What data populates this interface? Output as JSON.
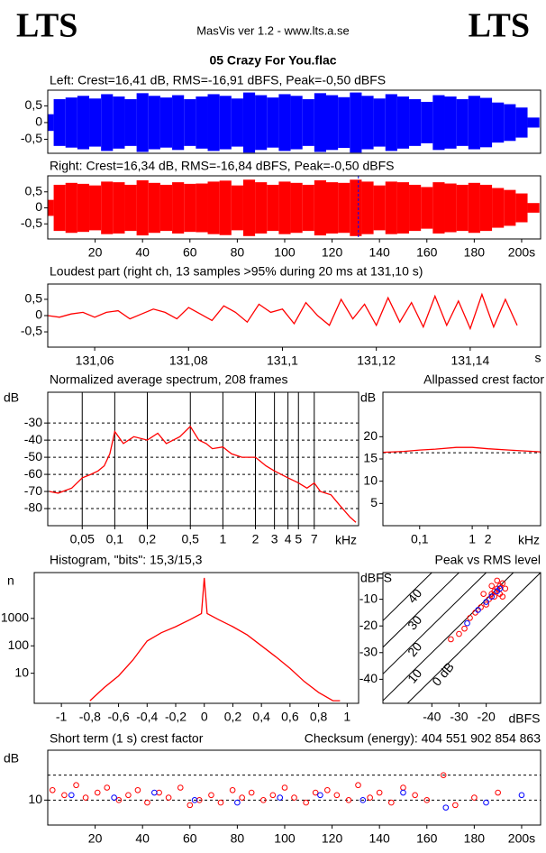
{
  "header": {
    "logo_left": "LTS",
    "logo_right": "LTS",
    "app": "MasVis ver 1.2 - www.lts.a.se",
    "file": "05 Crazy For You.flac"
  },
  "chart_data": [
    {
      "type": "waveform",
      "title": "Left: Crest=16,41 dB, RMS=-16,91 dBFS, Peak=-0,50 dBFS",
      "xlim": [
        0,
        208
      ],
      "ylim": [
        -0.92,
        0.97
      ],
      "yticks": [
        {
          "value": 0.5,
          "label": "0,5"
        },
        0,
        {
          "value": -0.5,
          "label": "-0,5"
        }
      ],
      "x": [
        0,
        5,
        10,
        15,
        20,
        25,
        30,
        35,
        40,
        45,
        50,
        55,
        60,
        65,
        70,
        75,
        80,
        85,
        90,
        95,
        100,
        105,
        110,
        115,
        120,
        125,
        130,
        135,
        140,
        145,
        150,
        155,
        160,
        165,
        170,
        175,
        180,
        185,
        190,
        195,
        200,
        205
      ],
      "series": [
        {
          "color": "#0000ff",
          "values": [
            0.25,
            0.7,
            0.75,
            0.8,
            0.72,
            0.85,
            0.78,
            0.7,
            0.88,
            0.8,
            0.75,
            0.82,
            0.7,
            0.78,
            0.85,
            0.8,
            0.72,
            0.9,
            0.82,
            0.75,
            0.85,
            0.8,
            0.7,
            0.88,
            0.82,
            0.76,
            0.9,
            0.8,
            0.72,
            0.85,
            0.78,
            0.7,
            0.62,
            0.82,
            0.78,
            0.7,
            0.8,
            0.74,
            0.6,
            0.55,
            0.45,
            0.15
          ]
        }
      ]
    },
    {
      "type": "waveform",
      "title": "Right: Crest=16,34 dB, RMS=-16,84 dBFS, Peak=-0,50 dBFS",
      "xlim": [
        0,
        208
      ],
      "ylim": [
        -0.97,
        1.0
      ],
      "yticks": [
        {
          "value": 0.5,
          "label": "0,5"
        },
        0,
        {
          "value": -0.5,
          "label": "-0,5"
        }
      ],
      "xticks": [
        20,
        40,
        60,
        80,
        100,
        120,
        140,
        160,
        180,
        {
          "value": 200,
          "label": "200s"
        }
      ],
      "cursor_x": 131.1,
      "x": [
        0,
        5,
        10,
        15,
        20,
        25,
        30,
        35,
        40,
        45,
        50,
        55,
        60,
        65,
        70,
        75,
        80,
        85,
        90,
        95,
        100,
        105,
        110,
        115,
        120,
        125,
        130,
        135,
        140,
        145,
        150,
        155,
        160,
        165,
        170,
        175,
        180,
        185,
        190,
        195,
        200,
        205
      ],
      "series": [
        {
          "color": "#ff0000",
          "values": [
            0.25,
            0.72,
            0.78,
            0.75,
            0.7,
            0.82,
            0.8,
            0.72,
            0.86,
            0.78,
            0.72,
            0.8,
            0.75,
            0.76,
            0.82,
            0.85,
            0.7,
            0.88,
            0.8,
            0.72,
            0.82,
            0.78,
            0.72,
            0.86,
            0.8,
            0.78,
            0.88,
            0.82,
            0.7,
            0.82,
            0.8,
            0.72,
            0.65,
            0.8,
            0.76,
            0.72,
            0.78,
            0.72,
            0.62,
            0.56,
            0.45,
            0.15
          ]
        }
      ]
    },
    {
      "type": "line",
      "title": "Loudest part (right ch, 13 samples >95% during 20 ms at 131,10 s)",
      "x_unit": "s",
      "xlim": [
        131.05,
        131.155
      ],
      "ylim": [
        -0.97,
        0.97
      ],
      "yticks": [
        {
          "value": 0.5,
          "label": "0,5"
        },
        0,
        {
          "value": -0.5,
          "label": "-0,5"
        }
      ],
      "xticks": [
        {
          "value": 131.06,
          "label": "131,06"
        },
        {
          "value": 131.08,
          "label": "131,08"
        },
        {
          "value": 131.1,
          "label": "131,1"
        },
        {
          "value": 131.12,
          "label": "131,12"
        },
        {
          "value": 131.14,
          "label": "131,14"
        }
      ],
      "x": [
        131.05,
        131.0525,
        131.055,
        131.0575,
        131.06,
        131.0625,
        131.065,
        131.0675,
        131.07,
        131.0725,
        131.075,
        131.0775,
        131.08,
        131.0825,
        131.085,
        131.0875,
        131.09,
        131.0925,
        131.095,
        131.0975,
        131.1,
        131.1025,
        131.105,
        131.1075,
        131.11,
        131.1125,
        131.115,
        131.1175,
        131.12,
        131.1225,
        131.125,
        131.1275,
        131.13,
        131.1325,
        131.135,
        131.1375,
        131.14,
        131.1425,
        131.145,
        131.1475,
        131.15
      ],
      "series": [
        {
          "color": "#ff0000",
          "values": [
            0,
            -0.05,
            0.05,
            0.1,
            -0.05,
            0.1,
            0.15,
            -0.1,
            0.05,
            0.2,
            0.1,
            -0.1,
            0.25,
            0.05,
            -0.15,
            0.3,
            0.1,
            -0.2,
            0.35,
            0.1,
            0.2,
            -0.25,
            0.4,
            0.0,
            -0.3,
            0.5,
            -0.1,
            0.35,
            -0.3,
            0.55,
            -0.2,
            0.4,
            -0.35,
            0.6,
            -0.3,
            0.45,
            -0.4,
            0.65,
            -0.35,
            0.5,
            -0.3
          ]
        }
      ]
    },
    {
      "type": "line",
      "title": "Normalized average spectrum, 208 frames",
      "y_label": "dB",
      "x_unit": "kHz",
      "xlog": true,
      "xlim": [
        0.024,
        18
      ],
      "ylim": [
        -90,
        -12
      ],
      "xgrid": true,
      "ygrid": true,
      "yticks": [
        -30,
        -40,
        -50,
        -60,
        -70,
        -80
      ],
      "xticks": [
        {
          "value": 0.05,
          "label": "0,05"
        },
        {
          "value": 0.1,
          "label": "0,1"
        },
        {
          "value": 0.2,
          "label": "0,2"
        },
        {
          "value": 0.5,
          "label": "0,5"
        },
        1,
        2,
        3,
        4,
        5,
        7
      ],
      "x": [
        0.025,
        0.03,
        0.04,
        0.05,
        0.06,
        0.07,
        0.08,
        0.09,
        0.1,
        0.12,
        0.15,
        0.2,
        0.25,
        0.3,
        0.4,
        0.5,
        0.6,
        0.7,
        0.8,
        1,
        1.2,
        1.5,
        2,
        2.5,
        3,
        4,
        5,
        6,
        7,
        8,
        10,
        12,
        15,
        17
      ],
      "series": [
        {
          "color": "#ff0000",
          "values": [
            -70,
            -71,
            -68,
            -62,
            -60,
            -58,
            -55,
            -48,
            -35,
            -42,
            -38,
            -40,
            -36,
            -42,
            -38,
            -32,
            -40,
            -42,
            -45,
            -44,
            -48,
            -50,
            -50,
            -55,
            -58,
            -62,
            -65,
            -68,
            -65,
            -70,
            -72,
            -78,
            -85,
            -88
          ]
        }
      ]
    },
    {
      "type": "line",
      "title": "Allpassed crest factor",
      "y_label": "dB",
      "x_unit": "kHz",
      "xlog": true,
      "xlim": [
        0.02,
        20
      ],
      "ylim": [
        0,
        30
      ],
      "ref_line": 16.4,
      "yticks": [
        20,
        15,
        10,
        5
      ],
      "xticks": [
        {
          "value": 0.1,
          "label": "0,1"
        },
        1,
        2
      ],
      "x": [
        0.02,
        0.05,
        0.1,
        0.2,
        0.5,
        1,
        2,
        5,
        10,
        20
      ],
      "series": [
        {
          "color": "#ff0000",
          "values": [
            16.5,
            16.7,
            17,
            17.2,
            17.6,
            17.6,
            17.3,
            17,
            16.8,
            16.6
          ]
        }
      ]
    },
    {
      "type": "line",
      "title": "Histogram, \"bits\": 15,3/15,3",
      "y_label": "n",
      "ylog": true,
      "xlim": [
        -1.19,
        1.08
      ],
      "ylim": [
        0.8,
        47000
      ],
      "yticks": [
        10,
        100,
        1000
      ],
      "xticks": [
        -1,
        {
          "value": -0.8,
          "label": "-0,8"
        },
        {
          "value": -0.6,
          "label": "-0,6"
        },
        {
          "value": -0.4,
          "label": "-0,4"
        },
        {
          "value": -0.2,
          "label": "-0,2"
        },
        0,
        {
          "value": 0.2,
          "label": "0,2"
        },
        {
          "value": 0.4,
          "label": "0,4"
        },
        {
          "value": 0.6,
          "label": "0,6"
        },
        {
          "value": 0.8,
          "label": "0,8"
        },
        1
      ],
      "x": [
        -0.8,
        -0.7,
        -0.6,
        -0.5,
        -0.4,
        -0.3,
        -0.2,
        -0.1,
        -0.02,
        0,
        0.02,
        0.1,
        0.2,
        0.3,
        0.4,
        0.5,
        0.6,
        0.7,
        0.8,
        0.9,
        0.95
      ],
      "series": [
        {
          "color": "#ff0000",
          "values": [
            1,
            3,
            8,
            30,
            150,
            300,
            500,
            900,
            1500,
            30000,
            1500,
            900,
            500,
            250,
            100,
            40,
            15,
            5,
            2,
            1,
            1
          ]
        }
      ]
    },
    {
      "type": "scatter",
      "title": "Peak vs RMS level",
      "y_label": "dBFS",
      "x_unit": "dBFS",
      "xlim": [
        -58,
        0
      ],
      "ylim": [
        -49,
        0
      ],
      "yticks": [
        -10,
        -20,
        -30,
        -40
      ],
      "xticks": [
        -40,
        -30,
        -20
      ],
      "diagonals": [
        {
          "value": 40,
          "label": "40"
        },
        {
          "value": 30,
          "label": "30"
        },
        {
          "value": 20,
          "label": "20"
        },
        {
          "value": 10,
          "label": "10"
        },
        {
          "value": 0,
          "label": "0 dB"
        }
      ],
      "series": [
        {
          "color": "#ff0000",
          "x": [
            -18,
            -16,
            -15,
            -17,
            -14,
            -19,
            -20,
            -16,
            -13,
            -15,
            -18,
            -22,
            -24,
            -26,
            -28,
            -30,
            -33,
            -17,
            -14,
            -21
          ],
          "values": [
            -8,
            -6,
            -5,
            -9,
            -4,
            -10,
            -12,
            -3,
            -6,
            -8,
            -5,
            -13,
            -15,
            -17,
            -21,
            -23,
            -25,
            -7,
            -9,
            -8
          ]
        },
        {
          "color": "#0000ff",
          "x": [
            -16,
            -18,
            -23,
            -27,
            -15,
            -20
          ],
          "values": [
            -7,
            -9,
            -14,
            -19,
            -6,
            -11
          ]
        }
      ]
    },
    {
      "type": "scatter",
      "title": "Short term (1 s) crest factor",
      "y_label": "dB",
      "annotation": "Checksum (energy):  404 551 902 854 863",
      "xlim": [
        0,
        208
      ],
      "ylim": [
        0,
        30
      ],
      "ygrid": true,
      "ref_line": 20,
      "yticks": [
        10
      ],
      "xticks": [
        20,
        40,
        60,
        80,
        100,
        120,
        140,
        160,
        180,
        {
          "value": 200,
          "label": "200s"
        }
      ],
      "series": [
        {
          "color": "#ff0000",
          "x": [
            2,
            7,
            12,
            16,
            21,
            25,
            30,
            34,
            38,
            42,
            47,
            51,
            56,
            60,
            64,
            69,
            73,
            78,
            82,
            86,
            91,
            95,
            100,
            104,
            109,
            113,
            118,
            122,
            127,
            131,
            136,
            140,
            145,
            150,
            155,
            160,
            167,
            172,
            180,
            190
          ],
          "values": [
            14,
            12,
            16,
            11,
            13,
            15,
            10,
            12,
            14,
            9,
            13,
            11,
            15,
            8,
            10,
            12,
            9,
            14,
            11,
            13,
            10,
            12,
            15,
            11,
            9,
            13,
            14,
            12,
            10,
            16,
            11,
            13,
            9,
            15,
            12,
            10,
            20,
            8,
            11,
            13
          ]
        },
        {
          "color": "#0000ff",
          "x": [
            10,
            28,
            45,
            62,
            80,
            98,
            115,
            133,
            150,
            168,
            185,
            200
          ],
          "values": [
            12,
            11,
            13,
            10,
            9,
            11,
            12,
            10,
            13,
            7,
            9,
            12
          ]
        }
      ]
    }
  ]
}
